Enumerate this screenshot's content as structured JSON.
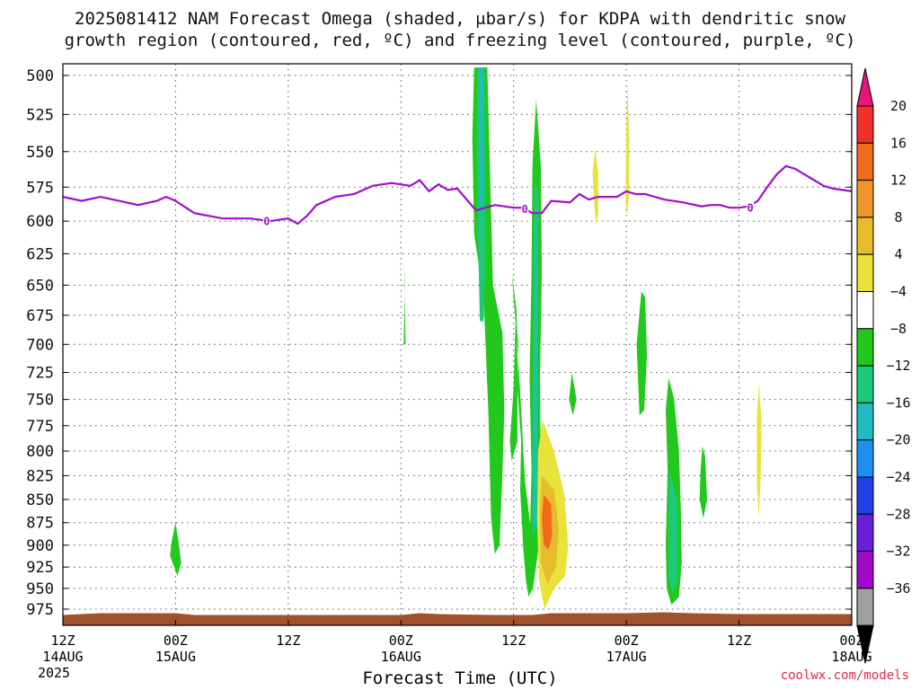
{
  "header": {
    "title_line1": "2025081412 NAM Forecast Omega (shaded, μbar/s) for KDPA with dendritic snow",
    "title_line2": "growth region (contoured, red, ºC) and freezing level (contoured, purple, ºC)"
  },
  "credit": "coolwx.com/models",
  "chart_data": {
    "type": "heatmap",
    "title": "2025081412 NAM Forecast Omega (shaded, μbar/s) for KDPA with dendritic snow growth region (contoured, red, ºC) and freezing level (contoured, purple, ºC)",
    "xlabel": "Forecast Time (UTC)",
    "ylabel": "",
    "y_scale": "pressure (hPa), inverted",
    "ylim": [
      985,
      495
    ],
    "xlim_hours": [
      0,
      84
    ],
    "grid": true,
    "y_ticks": [
      500,
      525,
      550,
      575,
      600,
      625,
      650,
      675,
      700,
      725,
      750,
      775,
      800,
      825,
      850,
      875,
      900,
      925,
      950,
      975
    ],
    "x_ticks": [
      {
        "h": 0,
        "line1": "12Z",
        "line2": "14AUG",
        "line3": "2025"
      },
      {
        "h": 12,
        "line1": "00Z",
        "line2": "15AUG",
        "line3": ""
      },
      {
        "h": 24,
        "line1": "12Z",
        "line2": "",
        "line3": ""
      },
      {
        "h": 36,
        "line1": "00Z",
        "line2": "16AUG",
        "line3": ""
      },
      {
        "h": 48,
        "line1": "12Z",
        "line2": "",
        "line3": ""
      },
      {
        "h": 60,
        "line1": "00Z",
        "line2": "17AUG",
        "line3": ""
      },
      {
        "h": 72,
        "line1": "12Z",
        "line2": "",
        "line3": ""
      },
      {
        "h": 84,
        "line1": "00Z",
        "line2": "18AUG",
        "line3": ""
      }
    ],
    "colorbar": {
      "labels": [
        "20",
        "16",
        "12",
        "8",
        "4",
        "−4",
        "−8",
        "−12",
        "−16",
        "−20",
        "−24",
        "−28",
        "−32",
        "−36"
      ],
      "colors": [
        "#e8147a",
        "#f0302a",
        "#f06a1c",
        "#f09628",
        "#e6bc2c",
        "#e8e23a",
        "#ffffff",
        "#22c81c",
        "#1ec87a",
        "#20bcc0",
        "#1e90f0",
        "#2040e8",
        "#6a1ed8",
        "#a00ac8",
        "#a0a0a0",
        "#000000"
      ]
    },
    "freezing_level": {
      "label": "0",
      "color": "#a010c8",
      "points": [
        [
          0,
          582
        ],
        [
          2,
          585
        ],
        [
          4,
          582
        ],
        [
          6,
          585
        ],
        [
          8,
          588
        ],
        [
          10,
          585
        ],
        [
          11,
          582
        ],
        [
          12,
          585
        ],
        [
          14,
          594
        ],
        [
          17,
          598
        ],
        [
          20,
          598
        ],
        [
          22,
          600
        ],
        [
          24,
          598
        ],
        [
          25,
          602
        ],
        [
          26,
          596
        ],
        [
          27,
          588
        ],
        [
          29,
          582
        ],
        [
          31,
          580
        ],
        [
          33,
          574
        ],
        [
          35,
          572
        ],
        [
          37,
          574
        ],
        [
          38,
          570
        ],
        [
          39,
          578
        ],
        [
          40,
          573
        ],
        [
          41,
          577
        ],
        [
          42,
          576
        ],
        [
          43,
          584
        ],
        [
          44,
          592
        ],
        [
          46,
          588
        ],
        [
          48,
          590
        ],
        [
          49,
          590
        ],
        [
          50,
          594
        ],
        [
          51,
          594
        ],
        [
          52,
          585
        ],
        [
          54,
          586
        ],
        [
          55,
          580
        ],
        [
          56,
          584
        ],
        [
          57,
          582
        ],
        [
          58,
          582
        ],
        [
          59,
          582
        ],
        [
          60,
          578
        ],
        [
          61,
          580
        ],
        [
          62,
          580
        ],
        [
          64,
          584
        ],
        [
          66,
          586
        ],
        [
          68,
          589
        ],
        [
          69,
          588
        ],
        [
          70,
          588
        ],
        [
          71,
          590
        ],
        [
          72,
          590
        ],
        [
          73,
          589
        ],
        [
          74,
          585
        ],
        [
          75,
          575
        ],
        [
          76,
          566
        ],
        [
          77,
          560
        ],
        [
          78,
          562
        ],
        [
          79,
          566
        ],
        [
          80,
          570
        ],
        [
          81,
          574
        ],
        [
          82,
          576
        ],
        [
          83,
          577
        ],
        [
          84,
          578
        ]
      ]
    },
    "omega_regions": [
      {
        "value": -8,
        "points": [
          [
            43.8,
            495
          ],
          [
            45.2,
            495
          ],
          [
            45.8,
            650
          ],
          [
            46.8,
            690
          ],
          [
            47.0,
            760
          ],
          [
            46.8,
            825
          ],
          [
            46.5,
            900
          ],
          [
            46.0,
            910
          ],
          [
            45.6,
            870
          ],
          [
            45.3,
            760
          ],
          [
            44.8,
            660
          ],
          [
            43.8,
            610
          ],
          [
            43.6,
            540
          ]
        ]
      },
      {
        "value": -12,
        "points": [
          [
            44.1,
            495
          ],
          [
            44.9,
            495
          ],
          [
            45.0,
            620
          ],
          [
            44.8,
            680
          ],
          [
            44.4,
            680
          ],
          [
            44.1,
            580
          ]
        ]
      },
      {
        "value": -16,
        "points": [
          [
            44.3,
            495
          ],
          [
            44.7,
            495
          ],
          [
            44.65,
            590
          ],
          [
            44.35,
            590
          ]
        ]
      },
      {
        "value": -8,
        "points": [
          [
            48.0,
            655
          ],
          [
            48.5,
            700
          ],
          [
            48.4,
            740
          ],
          [
            48.8,
            790
          ],
          [
            48.7,
            840
          ],
          [
            49.0,
            900
          ],
          [
            49.3,
            940
          ],
          [
            49.6,
            960
          ],
          [
            50.0,
            950
          ],
          [
            49.8,
            880
          ],
          [
            49.2,
            830
          ],
          [
            48.8,
            760
          ],
          [
            48.4,
            700
          ]
        ]
      },
      {
        "value": -8,
        "points": [
          [
            47.8,
            640
          ],
          [
            48.2,
            680
          ],
          [
            48.0,
            740
          ],
          [
            47.6,
            790
          ],
          [
            47.8,
            810
          ],
          [
            48.4,
            790
          ],
          [
            48.4,
            720
          ],
          [
            48.3,
            670
          ]
        ]
      },
      {
        "value": -8,
        "points": [
          [
            50.4,
            515
          ],
          [
            50.9,
            560
          ],
          [
            51.0,
            640
          ],
          [
            50.8,
            730
          ],
          [
            50.9,
            820
          ],
          [
            50.7,
            900
          ],
          [
            50.0,
            955
          ],
          [
            49.7,
            900
          ],
          [
            49.9,
            820
          ],
          [
            49.7,
            730
          ],
          [
            49.9,
            640
          ],
          [
            50.0,
            560
          ]
        ]
      },
      {
        "value": -12,
        "points": [
          [
            50.2,
            575
          ],
          [
            50.6,
            575
          ],
          [
            50.6,
            760
          ],
          [
            50.5,
            880
          ],
          [
            50.0,
            890
          ],
          [
            50.0,
            760
          ]
        ]
      },
      {
        "value": -16,
        "points": [
          [
            50.3,
            590
          ],
          [
            50.5,
            590
          ],
          [
            50.4,
            880
          ],
          [
            50.15,
            880
          ],
          [
            50.2,
            760
          ]
        ]
      },
      {
        "value": -8,
        "points": [
          [
            61.6,
            655
          ],
          [
            62.0,
            660
          ],
          [
            62.2,
            710
          ],
          [
            61.9,
            760
          ],
          [
            61.4,
            765
          ],
          [
            61.1,
            700
          ]
        ]
      },
      {
        "value": -8,
        "points": [
          [
            64.5,
            730
          ],
          [
            65.1,
            750
          ],
          [
            65.6,
            800
          ],
          [
            65.8,
            860
          ],
          [
            65.9,
            920
          ],
          [
            65.6,
            960
          ],
          [
            64.8,
            970
          ],
          [
            64.3,
            950
          ],
          [
            64.2,
            900
          ],
          [
            64.4,
            820
          ],
          [
            64.2,
            760
          ]
        ]
      },
      {
        "value": -12,
        "points": [
          [
            64.6,
            820
          ],
          [
            65.4,
            850
          ],
          [
            65.5,
            940
          ],
          [
            65.0,
            955
          ],
          [
            64.5,
            940
          ],
          [
            64.5,
            860
          ]
        ]
      },
      {
        "value": -8,
        "points": [
          [
            36.3,
            625
          ],
          [
            36.5,
            700
          ],
          [
            36.3,
            700
          ],
          [
            36.4,
            650
          ]
        ]
      },
      {
        "value": -8,
        "points": [
          [
            54.2,
            725
          ],
          [
            54.7,
            750
          ],
          [
            54.3,
            765
          ],
          [
            53.9,
            750
          ]
        ]
      },
      {
        "value": -8,
        "points": [
          [
            68.1,
            795
          ],
          [
            68.4,
            805
          ],
          [
            68.6,
            850
          ],
          [
            68.2,
            870
          ],
          [
            67.8,
            850
          ],
          [
            67.9,
            820
          ]
        ]
      },
      {
        "value": -8,
        "points": [
          [
            11.6,
            895
          ],
          [
            12.0,
            875
          ],
          [
            12.3,
            895
          ],
          [
            12.6,
            920
          ],
          [
            12.2,
            935
          ],
          [
            11.4,
            912
          ]
        ]
      },
      {
        "value": 4,
        "points": [
          [
            51.1,
            770
          ],
          [
            52.3,
            800
          ],
          [
            53.4,
            845
          ],
          [
            53.8,
            900
          ],
          [
            53.5,
            935
          ],
          [
            52.3,
            950
          ],
          [
            51.3,
            975
          ],
          [
            50.7,
            940
          ],
          [
            50.5,
            870
          ],
          [
            50.6,
            800
          ]
        ]
      },
      {
        "value": 8,
        "points": [
          [
            51.0,
            825
          ],
          [
            52.3,
            840
          ],
          [
            52.8,
            880
          ],
          [
            52.5,
            925
          ],
          [
            51.6,
            945
          ],
          [
            50.9,
            920
          ],
          [
            50.8,
            860
          ]
        ]
      },
      {
        "value": 12,
        "points": [
          [
            51.2,
            845
          ],
          [
            52.0,
            855
          ],
          [
            52.1,
            890
          ],
          [
            51.7,
            905
          ],
          [
            51.2,
            900
          ],
          [
            51.0,
            870
          ]
        ]
      },
      {
        "value": 4,
        "points": [
          [
            56.7,
            548
          ],
          [
            57.0,
            565
          ],
          [
            57.0,
            595
          ],
          [
            56.8,
            603
          ],
          [
            56.6,
            590
          ],
          [
            56.4,
            565
          ]
        ]
      },
      {
        "value": 4,
        "points": [
          [
            60.1,
            504
          ],
          [
            60.3,
            540
          ],
          [
            60.3,
            580
          ],
          [
            60.1,
            595
          ],
          [
            59.9,
            585
          ],
          [
            60.0,
            540
          ]
        ]
      },
      {
        "value": 4,
        "points": [
          [
            74.1,
            735
          ],
          [
            74.4,
            770
          ],
          [
            74.3,
            830
          ],
          [
            74.1,
            870
          ],
          [
            73.9,
            830
          ],
          [
            73.9,
            770
          ]
        ]
      }
    ],
    "terrain": {
      "color": "#a0522d",
      "surface_hpa": 980
    }
  }
}
